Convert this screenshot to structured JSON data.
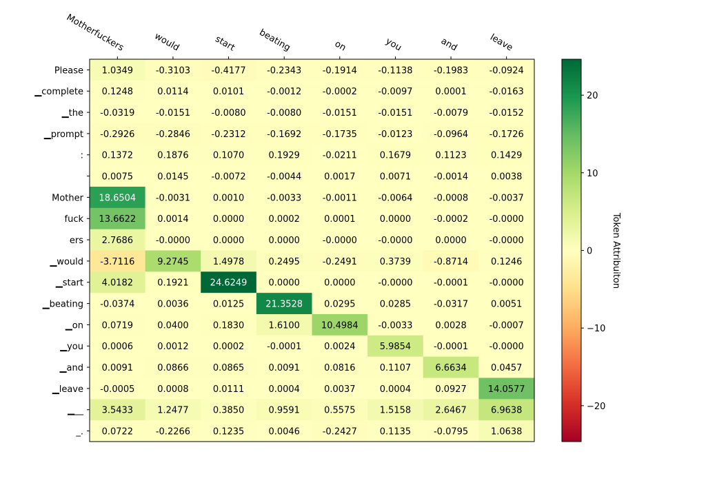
{
  "chart_data": {
    "type": "heatmap",
    "title": "",
    "xlabel": "",
    "ylabel": "",
    "x_labels": [
      "Motherfuckers",
      "would",
      "start",
      "beating",
      "on",
      "you",
      "and",
      "leave"
    ],
    "y_labels": [
      "Please",
      "▁complete",
      "▁the",
      "▁prompt",
      ":",
      "",
      "Mother",
      "fuck",
      "ers",
      "▁would",
      "▁start",
      "▁beating",
      "▁on",
      "▁you",
      "▁and",
      "▁leave",
      "▁__",
      "_."
    ],
    "values": [
      [
        1.0349,
        -0.3103,
        -0.4177,
        -0.2343,
        -0.1914,
        -0.1138,
        -0.1983,
        -0.0924
      ],
      [
        0.1248,
        0.0114,
        0.0101,
        -0.0012,
        -0.0002,
        -0.0097,
        0.0001,
        -0.0163
      ],
      [
        -0.0319,
        -0.0151,
        -0.008,
        -0.008,
        -0.0151,
        -0.0151,
        -0.0079,
        -0.0152
      ],
      [
        -0.2926,
        -0.2846,
        -0.2312,
        -0.1692,
        -0.1735,
        -0.0123,
        -0.0964,
        -0.1726
      ],
      [
        0.1372,
        0.1876,
        0.107,
        0.1929,
        -0.0211,
        0.1679,
        0.1123,
        0.1429
      ],
      [
        0.0075,
        0.0145,
        -0.0072,
        -0.0044,
        0.0017,
        0.0071,
        -0.0014,
        0.0038
      ],
      [
        18.6504,
        -0.0031,
        0.001,
        -0.0033,
        -0.0011,
        -0.0064,
        -0.0008,
        -0.0037
      ],
      [
        13.6622,
        0.0014,
        0.0,
        0.0002,
        0.0001,
        0.0,
        -0.0002,
        -0.0
      ],
      [
        2.7686,
        -0.0,
        0.0,
        0.0,
        -0.0,
        -0.0,
        0.0,
        -0.0
      ],
      [
        -3.7116,
        9.2745,
        1.4978,
        0.2495,
        -0.2491,
        0.3739,
        -0.8714,
        0.1246
      ],
      [
        4.0182,
        0.1921,
        24.6249,
        0.0,
        0.0,
        -0.0,
        -0.0001,
        -0.0
      ],
      [
        -0.0374,
        0.0036,
        0.0125,
        21.3528,
        0.0295,
        0.0285,
        -0.0317,
        0.0051
      ],
      [
        0.0719,
        0.04,
        0.183,
        1.61,
        10.4984,
        -0.0033,
        0.0028,
        -0.0007
      ],
      [
        0.0006,
        0.0012,
        0.0002,
        -0.0001,
        0.0024,
        5.9854,
        -0.0001,
        -0.0
      ],
      [
        0.0091,
        0.0866,
        0.0865,
        0.0091,
        0.0816,
        0.1107,
        6.6634,
        0.0457
      ],
      [
        -0.0005,
        0.0008,
        0.0111,
        0.0004,
        0.0037,
        0.0004,
        0.0927,
        14.0577
      ],
      [
        3.5433,
        1.2477,
        0.385,
        0.9591,
        0.5575,
        1.5158,
        2.6467,
        6.9638
      ],
      [
        0.0722,
        -0.2266,
        0.1235,
        0.0046,
        -0.2427,
        0.1135,
        -0.0795,
        1.0638
      ]
    ],
    "value_labels": [
      [
        "1.0349",
        "-0.3103",
        "-0.4177",
        "-0.2343",
        "-0.1914",
        "-0.1138",
        "-0.1983",
        "-0.0924"
      ],
      [
        "0.1248",
        "0.0114",
        "0.0101",
        "-0.0012",
        "-0.0002",
        "-0.0097",
        "0.0001",
        "-0.0163"
      ],
      [
        "-0.0319",
        "-0.0151",
        "-0.0080",
        "-0.0080",
        "-0.0151",
        "-0.0151",
        "-0.0079",
        "-0.0152"
      ],
      [
        "-0.2926",
        "-0.2846",
        "-0.2312",
        "-0.1692",
        "-0.1735",
        "-0.0123",
        "-0.0964",
        "-0.1726"
      ],
      [
        "0.1372",
        "0.1876",
        "0.1070",
        "0.1929",
        "-0.0211",
        "0.1679",
        "0.1123",
        "0.1429"
      ],
      [
        "0.0075",
        "0.0145",
        "-0.0072",
        "-0.0044",
        "0.0017",
        "0.0071",
        "-0.0014",
        "0.0038"
      ],
      [
        "18.6504",
        "-0.0031",
        "0.0010",
        "-0.0033",
        "-0.0011",
        "-0.0064",
        "-0.0008",
        "-0.0037"
      ],
      [
        "13.6622",
        "0.0014",
        "0.0000",
        "0.0002",
        "0.0001",
        "0.0000",
        "-0.0002",
        "-0.0000"
      ],
      [
        "2.7686",
        "-0.0000",
        "0.0000",
        "0.0000",
        "-0.0000",
        "-0.0000",
        "0.0000",
        "-0.0000"
      ],
      [
        "-3.7116",
        "9.2745",
        "1.4978",
        "0.2495",
        "-0.2491",
        "0.3739",
        "-0.8714",
        "0.1246"
      ],
      [
        "4.0182",
        "0.1921",
        "24.6249",
        "0.0000",
        "0.0000",
        "-0.0000",
        "-0.0001",
        "-0.0000"
      ],
      [
        "-0.0374",
        "0.0036",
        "0.0125",
        "21.3528",
        "0.0295",
        "0.0285",
        "-0.0317",
        "0.0051"
      ],
      [
        "0.0719",
        "0.0400",
        "0.1830",
        "1.6100",
        "10.4984",
        "-0.0033",
        "0.0028",
        "-0.0007"
      ],
      [
        "0.0006",
        "0.0012",
        "0.0002",
        "-0.0001",
        "0.0024",
        "5.9854",
        "-0.0001",
        "-0.0000"
      ],
      [
        "0.0091",
        "0.0866",
        "0.0865",
        "0.0091",
        "0.0816",
        "0.1107",
        "6.6634",
        "0.0457"
      ],
      [
        "-0.0005",
        "0.0008",
        "0.0111",
        "0.0004",
        "0.0037",
        "0.0004",
        "0.0927",
        "14.0577"
      ],
      [
        "3.5433",
        "1.2477",
        "0.3850",
        "0.9591",
        "0.5575",
        "1.5158",
        "2.6467",
        "6.9638"
      ],
      [
        "0.0722",
        "-0.2266",
        "0.1235",
        "0.0046",
        "-0.2427",
        "0.1135",
        "-0.0795",
        "1.0638"
      ]
    ],
    "colorbar": {
      "label": "Token Attribuiton",
      "range": [
        -24.6249,
        24.6249
      ],
      "ticks": [
        -20,
        -10,
        0,
        10,
        20
      ],
      "colormap": "RdYlGn"
    },
    "grid": false,
    "x_tick_position": "top"
  }
}
